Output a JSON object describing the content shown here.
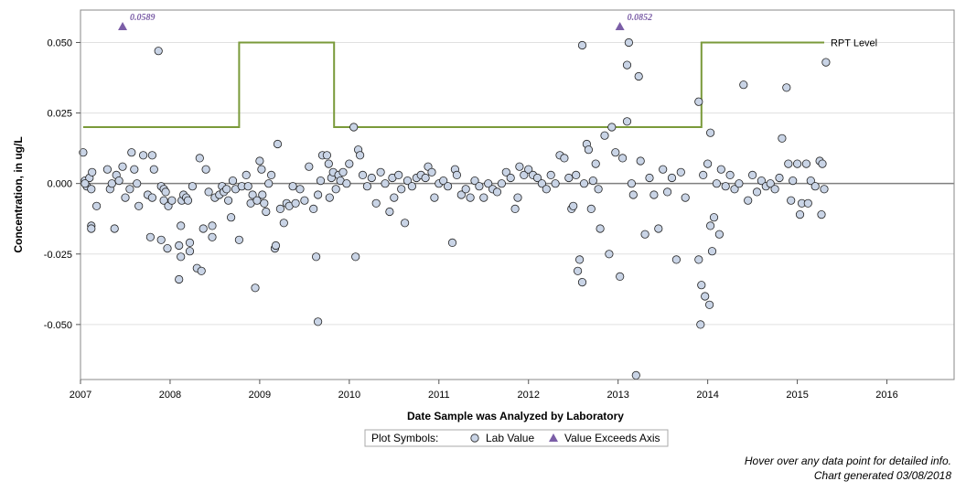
{
  "chart_data": {
    "type": "scatter",
    "ylabel": "Concentration, in ug/L",
    "xlabel": "Date Sample was Analyzed by Laboratory",
    "xlim": [
      2007.0,
      2016.75
    ],
    "ylim": [
      -0.0695,
      0.0615
    ],
    "x_ticks": [
      "2007",
      "2008",
      "2009",
      "2010",
      "2011",
      "2012",
      "2013",
      "2014",
      "2015",
      "2016"
    ],
    "y_ticks": [
      "0.050",
      "0.025",
      "0.000",
      "-0.025",
      "-0.050"
    ],
    "y_tick_values": [
      0.05,
      0.025,
      0.0,
      -0.025,
      -0.05
    ],
    "zero_line": 0.0,
    "grid": "horizontal",
    "rpt_level": {
      "name": "RPT Level",
      "color": "#7a9a3a",
      "points": [
        [
          2007.03,
          0.02
        ],
        [
          2008.77,
          0.02
        ],
        [
          2008.77,
          0.05
        ],
        [
          2009.83,
          0.05
        ],
        [
          2009.83,
          0.02
        ],
        [
          2013.93,
          0.02
        ],
        [
          2013.93,
          0.05
        ],
        [
          2015.3,
          0.05
        ]
      ]
    },
    "exceeds_axis": [
      {
        "x": 2007.47,
        "y": 0.0589,
        "label": "0.0589"
      },
      {
        "x": 2013.02,
        "y": 0.0852,
        "label": "0.0852"
      }
    ],
    "lab_values": [
      [
        2007.03,
        0.011
      ],
      [
        2007.05,
        0.001
      ],
      [
        2007.07,
        -0.001
      ],
      [
        2007.1,
        0.002
      ],
      [
        2007.12,
        -0.002
      ],
      [
        2007.13,
        0.004
      ],
      [
        2007.12,
        -0.015
      ],
      [
        2007.12,
        -0.016
      ],
      [
        2007.18,
        -0.008
      ],
      [
        2007.05,
        0.0
      ],
      [
        2007.3,
        0.005
      ],
      [
        2007.33,
        -0.002
      ],
      [
        2007.35,
        0.0
      ],
      [
        2007.38,
        -0.016
      ],
      [
        2007.4,
        0.003
      ],
      [
        2007.43,
        0.001
      ],
      [
        2007.47,
        0.006
      ],
      [
        2007.5,
        -0.005
      ],
      [
        2007.55,
        -0.002
      ],
      [
        2007.57,
        0.011
      ],
      [
        2007.6,
        0.005
      ],
      [
        2007.63,
        0.0
      ],
      [
        2007.65,
        -0.008
      ],
      [
        2007.7,
        0.01
      ],
      [
        2007.75,
        -0.004
      ],
      [
        2007.78,
        -0.019
      ],
      [
        2007.8,
        -0.005
      ],
      [
        2007.82,
        0.005
      ],
      [
        2007.8,
        0.01
      ],
      [
        2007.87,
        0.047
      ],
      [
        2007.9,
        -0.001
      ],
      [
        2007.9,
        -0.02
      ],
      [
        2007.93,
        -0.002
      ],
      [
        2007.93,
        -0.006
      ],
      [
        2007.95,
        -0.003
      ],
      [
        2007.97,
        -0.023
      ],
      [
        2007.98,
        -0.008
      ],
      [
        2008.02,
        -0.006
      ],
      [
        2008.1,
        -0.034
      ],
      [
        2008.12,
        -0.026
      ],
      [
        2008.1,
        -0.022
      ],
      [
        2008.12,
        -0.015
      ],
      [
        2008.13,
        -0.006
      ],
      [
        2008.15,
        -0.004
      ],
      [
        2008.18,
        -0.005
      ],
      [
        2008.2,
        -0.006
      ],
      [
        2008.22,
        -0.024
      ],
      [
        2008.22,
        -0.021
      ],
      [
        2008.25,
        -0.001
      ],
      [
        2008.3,
        -0.03
      ],
      [
        2008.33,
        0.009
      ],
      [
        2008.35,
        -0.031
      ],
      [
        2008.37,
        -0.016
      ],
      [
        2008.4,
        0.005
      ],
      [
        2008.43,
        -0.003
      ],
      [
        2008.47,
        -0.015
      ],
      [
        2008.47,
        -0.019
      ],
      [
        2008.5,
        -0.005
      ],
      [
        2008.55,
        -0.004
      ],
      [
        2008.58,
        -0.001
      ],
      [
        2008.6,
        -0.003
      ],
      [
        2008.63,
        -0.002
      ],
      [
        2008.65,
        -0.006
      ],
      [
        2008.68,
        -0.012
      ],
      [
        2008.7,
        0.001
      ],
      [
        2008.73,
        -0.002
      ],
      [
        2008.77,
        -0.02
      ],
      [
        2008.8,
        -0.001
      ],
      [
        2008.85,
        0.003
      ],
      [
        2008.87,
        -0.001
      ],
      [
        2008.9,
        -0.007
      ],
      [
        2008.92,
        -0.004
      ],
      [
        2008.95,
        -0.037
      ],
      [
        2008.97,
        -0.006
      ],
      [
        2009.0,
        0.008
      ],
      [
        2009.02,
        0.005
      ],
      [
        2009.03,
        -0.004
      ],
      [
        2009.05,
        -0.007
      ],
      [
        2009.07,
        -0.01
      ],
      [
        2009.1,
        0.0
      ],
      [
        2009.13,
        0.003
      ],
      [
        2009.17,
        -0.023
      ],
      [
        2009.18,
        -0.022
      ],
      [
        2009.2,
        0.014
      ],
      [
        2009.23,
        -0.009
      ],
      [
        2009.27,
        -0.014
      ],
      [
        2009.3,
        -0.007
      ],
      [
        2009.33,
        -0.008
      ],
      [
        2009.37,
        -0.001
      ],
      [
        2009.4,
        -0.007
      ],
      [
        2009.45,
        -0.002
      ],
      [
        2009.5,
        -0.006
      ],
      [
        2009.55,
        0.006
      ],
      [
        2009.6,
        -0.009
      ],
      [
        2009.63,
        -0.026
      ],
      [
        2009.65,
        -0.049
      ],
      [
        2009.65,
        -0.004
      ],
      [
        2009.68,
        0.001
      ],
      [
        2009.7,
        0.01
      ],
      [
        2009.75,
        0.01
      ],
      [
        2009.77,
        0.007
      ],
      [
        2009.78,
        -0.005
      ],
      [
        2009.8,
        0.002
      ],
      [
        2009.82,
        0.004
      ],
      [
        2009.85,
        -0.002
      ],
      [
        2009.88,
        0.003
      ],
      [
        2009.9,
        0.001
      ],
      [
        2009.93,
        0.004
      ],
      [
        2009.97,
        0.0
      ],
      [
        2010.0,
        0.007
      ],
      [
        2010.05,
        0.02
      ],
      [
        2010.07,
        -0.026
      ],
      [
        2010.1,
        0.012
      ],
      [
        2010.12,
        0.01
      ],
      [
        2010.15,
        0.003
      ],
      [
        2010.2,
        -0.001
      ],
      [
        2010.25,
        0.002
      ],
      [
        2010.3,
        -0.007
      ],
      [
        2010.35,
        0.004
      ],
      [
        2010.4,
        0.0
      ],
      [
        2010.45,
        -0.01
      ],
      [
        2010.48,
        0.002
      ],
      [
        2010.5,
        -0.005
      ],
      [
        2010.55,
        0.003
      ],
      [
        2010.58,
        -0.002
      ],
      [
        2010.62,
        -0.014
      ],
      [
        2010.65,
        0.001
      ],
      [
        2010.7,
        -0.001
      ],
      [
        2010.75,
        0.002
      ],
      [
        2010.8,
        0.003
      ],
      [
        2010.85,
        0.002
      ],
      [
        2010.88,
        0.006
      ],
      [
        2010.92,
        0.004
      ],
      [
        2010.95,
        -0.005
      ],
      [
        2011.0,
        0.0
      ],
      [
        2011.05,
        0.001
      ],
      [
        2011.1,
        -0.001
      ],
      [
        2011.15,
        -0.021
      ],
      [
        2011.18,
        0.005
      ],
      [
        2011.2,
        0.003
      ],
      [
        2011.25,
        -0.004
      ],
      [
        2011.3,
        -0.002
      ],
      [
        2011.35,
        -0.005
      ],
      [
        2011.4,
        0.001
      ],
      [
        2011.45,
        -0.001
      ],
      [
        2011.5,
        -0.005
      ],
      [
        2011.55,
        0.0
      ],
      [
        2011.6,
        -0.002
      ],
      [
        2011.65,
        -0.003
      ],
      [
        2011.7,
        0.0
      ],
      [
        2011.75,
        0.004
      ],
      [
        2011.8,
        0.002
      ],
      [
        2011.85,
        -0.009
      ],
      [
        2011.88,
        -0.005
      ],
      [
        2011.9,
        0.006
      ],
      [
        2011.95,
        0.003
      ],
      [
        2012.0,
        0.005
      ],
      [
        2012.05,
        0.003
      ],
      [
        2012.1,
        0.002
      ],
      [
        2012.15,
        0.0
      ],
      [
        2012.2,
        -0.002
      ],
      [
        2012.25,
        0.003
      ],
      [
        2012.3,
        0.0
      ],
      [
        2012.35,
        0.01
      ],
      [
        2012.4,
        0.009
      ],
      [
        2012.45,
        0.002
      ],
      [
        2012.48,
        -0.009
      ],
      [
        2012.5,
        -0.008
      ],
      [
        2012.53,
        0.003
      ],
      [
        2012.55,
        -0.031
      ],
      [
        2012.57,
        -0.027
      ],
      [
        2012.6,
        0.049
      ],
      [
        2012.6,
        -0.035
      ],
      [
        2012.62,
        0.0
      ],
      [
        2012.65,
        0.014
      ],
      [
        2012.67,
        0.012
      ],
      [
        2012.7,
        -0.009
      ],
      [
        2012.72,
        0.001
      ],
      [
        2012.75,
        0.007
      ],
      [
        2012.78,
        -0.002
      ],
      [
        2012.8,
        -0.016
      ],
      [
        2012.85,
        0.017
      ],
      [
        2012.9,
        -0.025
      ],
      [
        2012.93,
        0.02
      ],
      [
        2012.97,
        0.011
      ],
      [
        2013.02,
        -0.033
      ],
      [
        2013.05,
        0.009
      ],
      [
        2013.1,
        0.022
      ],
      [
        2013.1,
        0.042
      ],
      [
        2013.12,
        0.05
      ],
      [
        2013.15,
        0.0
      ],
      [
        2013.17,
        -0.004
      ],
      [
        2013.2,
        -0.068
      ],
      [
        2013.23,
        0.038
      ],
      [
        2013.25,
        0.008
      ],
      [
        2013.3,
        -0.018
      ],
      [
        2013.35,
        0.002
      ],
      [
        2013.4,
        -0.004
      ],
      [
        2013.45,
        -0.016
      ],
      [
        2013.5,
        0.005
      ],
      [
        2013.55,
        -0.003
      ],
      [
        2013.6,
        0.002
      ],
      [
        2013.65,
        -0.027
      ],
      [
        2013.7,
        0.004
      ],
      [
        2013.75,
        -0.005
      ],
      [
        2013.9,
        0.029
      ],
      [
        2013.9,
        -0.027
      ],
      [
        2013.92,
        -0.05
      ],
      [
        2013.93,
        -0.036
      ],
      [
        2013.95,
        0.003
      ],
      [
        2013.97,
        -0.04
      ],
      [
        2014.0,
        0.007
      ],
      [
        2014.02,
        -0.043
      ],
      [
        2014.03,
        0.018
      ],
      [
        2014.03,
        -0.015
      ],
      [
        2014.05,
        -0.024
      ],
      [
        2014.07,
        -0.012
      ],
      [
        2014.1,
        0.0
      ],
      [
        2014.13,
        -0.018
      ],
      [
        2014.15,
        0.005
      ],
      [
        2014.2,
        -0.001
      ],
      [
        2014.25,
        0.003
      ],
      [
        2014.3,
        -0.002
      ],
      [
        2014.35,
        0.0
      ],
      [
        2014.4,
        0.035
      ],
      [
        2014.45,
        -0.006
      ],
      [
        2014.5,
        0.003
      ],
      [
        2014.55,
        -0.003
      ],
      [
        2014.6,
        0.001
      ],
      [
        2014.65,
        -0.001
      ],
      [
        2014.7,
        0.0
      ],
      [
        2014.75,
        -0.002
      ],
      [
        2014.8,
        0.002
      ],
      [
        2014.83,
        0.016
      ],
      [
        2014.88,
        0.034
      ],
      [
        2014.9,
        0.007
      ],
      [
        2014.93,
        -0.006
      ],
      [
        2014.95,
        0.001
      ],
      [
        2015.0,
        0.007
      ],
      [
        2015.03,
        -0.011
      ],
      [
        2015.05,
        -0.007
      ],
      [
        2015.1,
        0.007
      ],
      [
        2015.12,
        -0.007
      ],
      [
        2015.15,
        0.001
      ],
      [
        2015.2,
        -0.001
      ],
      [
        2015.25,
        0.008
      ],
      [
        2015.27,
        -0.011
      ],
      [
        2015.28,
        0.007
      ],
      [
        2015.3,
        -0.002
      ],
      [
        2015.32,
        0.043
      ]
    ],
    "legend": {
      "title": "Plot Symbols:",
      "items": [
        {
          "label": "Lab Value",
          "marker": "circle"
        },
        {
          "label": "Value Exceeds Axis",
          "marker": "triangle"
        }
      ]
    },
    "colors": {
      "marker_fill": "#c9d4e6",
      "marker_stroke": "#222222",
      "triangle": "#7b5ea7",
      "rpt_line": "#7a9a3a",
      "zero_line": "#7f7f7f",
      "gridline": "#e0e0e0"
    }
  },
  "footer": {
    "hover_note": "Hover over any data point for detailed info.",
    "generated": "Chart generated 03/08/2018"
  }
}
